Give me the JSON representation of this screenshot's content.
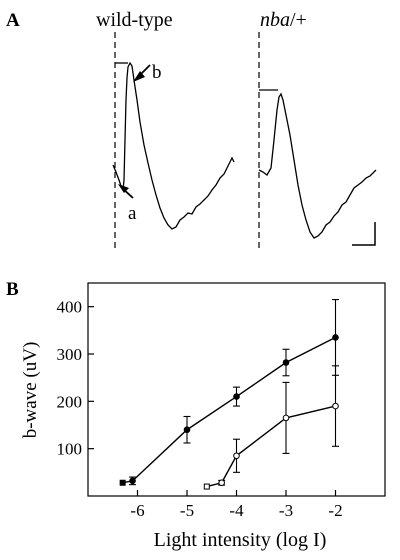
{
  "panel_a": {
    "label": "A",
    "trace_titles": {
      "left": "wild-type",
      "right_italic": "nba",
      "right_suffix": "/+"
    },
    "annotations": {
      "b": "b",
      "a": "a"
    }
  },
  "chart_data": {
    "type": "line",
    "panel_label": "B",
    "title": "",
    "xlabel": "Light intensity (log I)",
    "ylabel": "b-wave (uV)",
    "xlim": [
      -7,
      -1
    ],
    "ylim": [
      0,
      450
    ],
    "x_ticks": [
      -6,
      -5,
      -4,
      -3,
      -2
    ],
    "x_tick_labels": [
      "-6",
      "-5",
      "-4",
      "-3",
      "-2"
    ],
    "y_ticks": [
      100,
      200,
      300,
      400
    ],
    "y_tick_labels": [
      "100",
      "200",
      "300",
      "400"
    ],
    "series": [
      {
        "marker": "filled",
        "color": "#000000",
        "x": [
          -6.3,
          -6.1,
          -5,
          -4,
          -3,
          -2
        ],
        "y": [
          28,
          32,
          140,
          210,
          282,
          335
        ],
        "err": [
          0,
          8,
          28,
          20,
          28,
          80
        ]
      },
      {
        "marker": "open",
        "color": "#000000",
        "x": [
          -4.6,
          -4.3,
          -4,
          -3,
          -2
        ],
        "y": [
          20,
          28,
          85,
          165,
          190
        ],
        "err": [
          0,
          5,
          35,
          75,
          85
        ]
      }
    ]
  }
}
